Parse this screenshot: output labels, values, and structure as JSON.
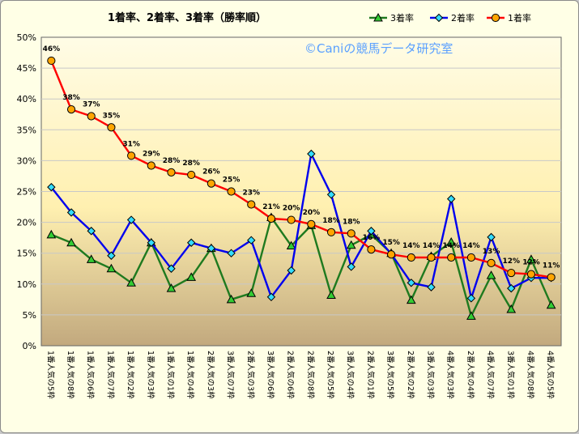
{
  "chart_data": {
    "type": "line",
    "title": "1着率、2着率、3着率（勝率順）",
    "watermark": "©Caniの競馬データ研究室",
    "ylim": [
      0,
      50
    ],
    "yticks": [
      "0%",
      "5%",
      "10%",
      "15%",
      "20%",
      "25%",
      "30%",
      "35%",
      "40%",
      "45%",
      "50%"
    ],
    "categories": [
      "1番人気の5枠",
      "1番人気の8枠",
      "1番人気の6枠",
      "1番人気の7枠",
      "1番人気の2枠",
      "1番人気の3枠",
      "1番人気の1枠",
      "1番人気の4枠",
      "2番人気の3枠",
      "3番人気の7枠",
      "2番人気の3枠",
      "3番人気の6枠",
      "2番人気の6枠",
      "2番人気の8枠",
      "2番人気の5枠",
      "3番人気の4枠",
      "2番人気の1枠",
      "3番人気の5枠",
      "2番人気の2枠",
      "3番人気の3枠",
      "4番人気の3枠",
      "2番人気の4枠",
      "4番人気の7枠",
      "3番人気の1枠",
      "4番人気の8枠",
      "4番人気の5枠"
    ],
    "legend": [
      "3着率",
      "2着率",
      "1着率"
    ],
    "series": [
      {
        "name": "3着率",
        "color": "#1f7a1f",
        "marker": "triangle",
        "markerFill": "#33cc33",
        "values": [
          18,
          16.7,
          14,
          12.5,
          10.2,
          16.7,
          9.3,
          11.1,
          15.8,
          7.5,
          8.5,
          20.8,
          16.2,
          19.5,
          8.2,
          16.3,
          18,
          15,
          7.4,
          14.5,
          16.8,
          4.8,
          11.4,
          5.9,
          14,
          6.6
        ]
      },
      {
        "name": "2着率",
        "color": "#0000ee",
        "marker": "diamond",
        "markerFill": "#33ddff",
        "values": [
          25.7,
          21.6,
          18.6,
          14.6,
          20.4,
          16.7,
          12.5,
          16.7,
          15.8,
          15,
          17.1,
          7.9,
          12.2,
          31.1,
          24.5,
          12.8,
          18.6,
          14.9,
          10.2,
          9.5,
          23.8,
          7.7,
          17.6,
          9.3,
          11,
          11
        ]
      },
      {
        "name": "1着率",
        "color": "#ff0000",
        "marker": "circle",
        "markerFill": "#ffa500",
        "values": [
          46.2,
          38.3,
          37.2,
          35.4,
          30.8,
          29.2,
          28.1,
          27.7,
          26.3,
          25,
          22.9,
          20.6,
          20.4,
          19.7,
          18.4,
          18.2,
          15.6,
          14.8,
          14.3,
          14.3,
          14.3,
          14.3,
          13.4,
          11.8,
          11.6,
          11.1
        ]
      }
    ],
    "dataLabels": [
      "46%",
      "38%",
      "37%",
      "35%",
      "31%",
      "29%",
      "28%",
      "28%",
      "26%",
      "25%",
      "23%",
      "21%",
      "20%",
      "20%",
      "18%",
      "18%",
      "16%",
      "15%",
      "14%",
      "14%",
      "14%",
      "14%",
      "13%",
      "12%",
      "12%",
      "11%"
    ]
  }
}
